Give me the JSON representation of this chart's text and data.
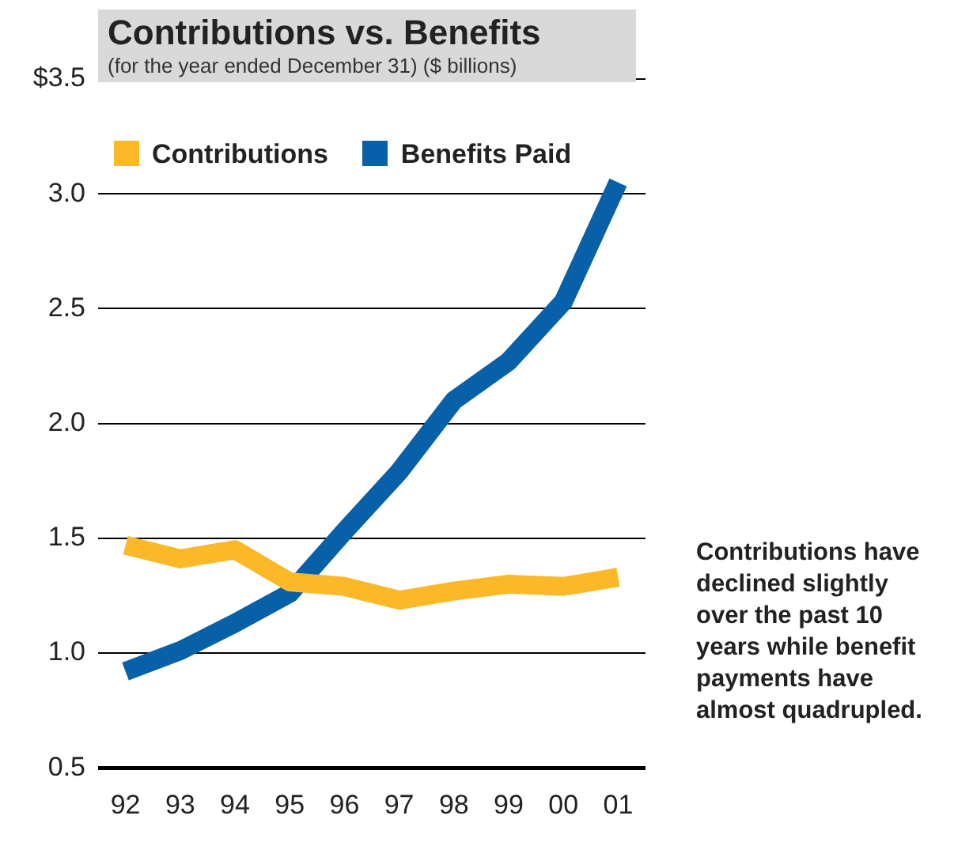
{
  "chart_data": {
    "type": "line",
    "title": "Contributions vs. Benefits",
    "subtitle": "(for the year ended December 31) ($ billions)",
    "categories": [
      "92",
      "93",
      "94",
      "95",
      "96",
      "97",
      "98",
      "99",
      "00",
      "01"
    ],
    "series": [
      {
        "name": "Contributions",
        "color": "#fbb92a",
        "values": [
          1.47,
          1.41,
          1.45,
          1.31,
          1.29,
          1.23,
          1.27,
          1.3,
          1.29,
          1.33
        ]
      },
      {
        "name": "Benefits Paid",
        "color": "#0860a8",
        "values": [
          0.92,
          1.01,
          1.13,
          1.26,
          1.53,
          1.79,
          2.1,
          2.27,
          2.53,
          3.05
        ]
      }
    ],
    "ylim": [
      0.5,
      3.5
    ],
    "yticks": [
      {
        "value": 0.5,
        "label": "0.5"
      },
      {
        "value": 1,
        "label": "1.0"
      },
      {
        "value": 1.5,
        "label": "1.5"
      },
      {
        "value": 2,
        "label": "2.0"
      },
      {
        "value": 2.5,
        "label": "2.5"
      },
      {
        "value": 3,
        "label": "3.0"
      },
      {
        "value": 3.5,
        "label": "$3.5"
      }
    ],
    "grid": "y",
    "legend": "top left",
    "marker": "none",
    "line_style": "solid",
    "annotations": [
      "Contributions have declined slightly over the past 10 years while benefit payments have almost quadrupled."
    ]
  }
}
